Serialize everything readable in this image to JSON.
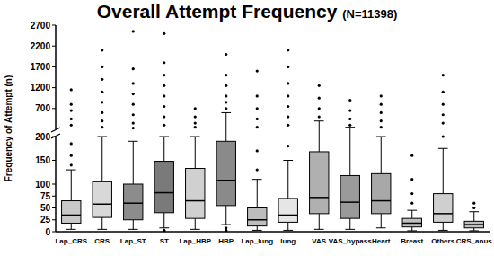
{
  "chart_data": {
    "type": "box",
    "title": "Overall Attempt Frequency",
    "subtitle": "(N=11398)",
    "y_label": "Frequency of Attempt (n)",
    "categories": [
      "Lap_CRS",
      "CRS",
      "Lap_ST",
      "ST",
      "Lap_HBP",
      "HBP",
      "Lap_lung",
      "lung",
      "VAS",
      "VAS_bypass",
      "Heart",
      "Breast",
      "Others",
      "CRS_anus"
    ],
    "whisker_low": [
      5,
      5,
      5,
      8,
      5,
      15,
      3,
      3,
      5,
      5,
      8,
      2,
      3,
      2
    ],
    "q1": [
      18,
      30,
      25,
      40,
      28,
      55,
      12,
      20,
      38,
      28,
      38,
      10,
      20,
      8
    ],
    "median": [
      35,
      58,
      60,
      82,
      65,
      108,
      25,
      35,
      72,
      62,
      65,
      18,
      38,
      15
    ],
    "q3": [
      65,
      105,
      100,
      148,
      133,
      190,
      50,
      70,
      168,
      118,
      122,
      28,
      80,
      22
    ],
    "whisker_high": [
      130,
      200,
      190,
      200,
      200,
      600,
      110,
      150,
      400,
      250,
      200,
      45,
      175,
      42
    ],
    "outliers": [
      [
        140,
        160,
        185,
        300,
        450,
        650,
        800,
        1150
      ],
      [
        250,
        400,
        600,
        850,
        1100,
        1400,
        1700,
        2100
      ],
      [
        230,
        350,
        550,
        800,
        1050,
        1300,
        1650,
        2550
      ],
      [
        2,
        3,
        300,
        500,
        750,
        1000,
        1250,
        1500,
        1800,
        2500
      ],
      [
        250,
        350,
        500,
        700
      ],
      [
        3,
        8,
        700,
        850,
        1000,
        1250,
        1500,
        2000
      ],
      [
        130,
        170,
        250,
        450,
        700,
        1000,
        1600
      ],
      [
        180,
        300,
        500,
        750,
        1000,
        1300,
        1700,
        2100
      ],
      [
        500,
        700,
        950,
        1250
      ],
      [
        300,
        450,
        650,
        900
      ],
      [
        250,
        400,
        600,
        800,
        1000
      ],
      [
        60,
        80,
        110,
        160
      ],
      [
        200,
        350,
        550,
        800,
        1100,
        1500
      ],
      [
        50,
        60
      ]
    ],
    "colors": [
      "#c8c8c8",
      "#d8d8d8",
      "#8c8c8c",
      "#7a7a7a",
      "#d0d0d0",
      "#8a8a8a",
      "#bdbdbd",
      "#e6e6e6",
      "#b0b0b0",
      "#9a9a9a",
      "#a8a8a8",
      "#c0c0c0",
      "#cfcfcf",
      "#bfbfbf"
    ],
    "ylim": [
      0,
      2700
    ],
    "yticks": [
      0,
      25,
      50,
      75,
      100,
      150,
      200,
      700,
      1200,
      1700,
      2200,
      2700
    ],
    "grid": false
  }
}
